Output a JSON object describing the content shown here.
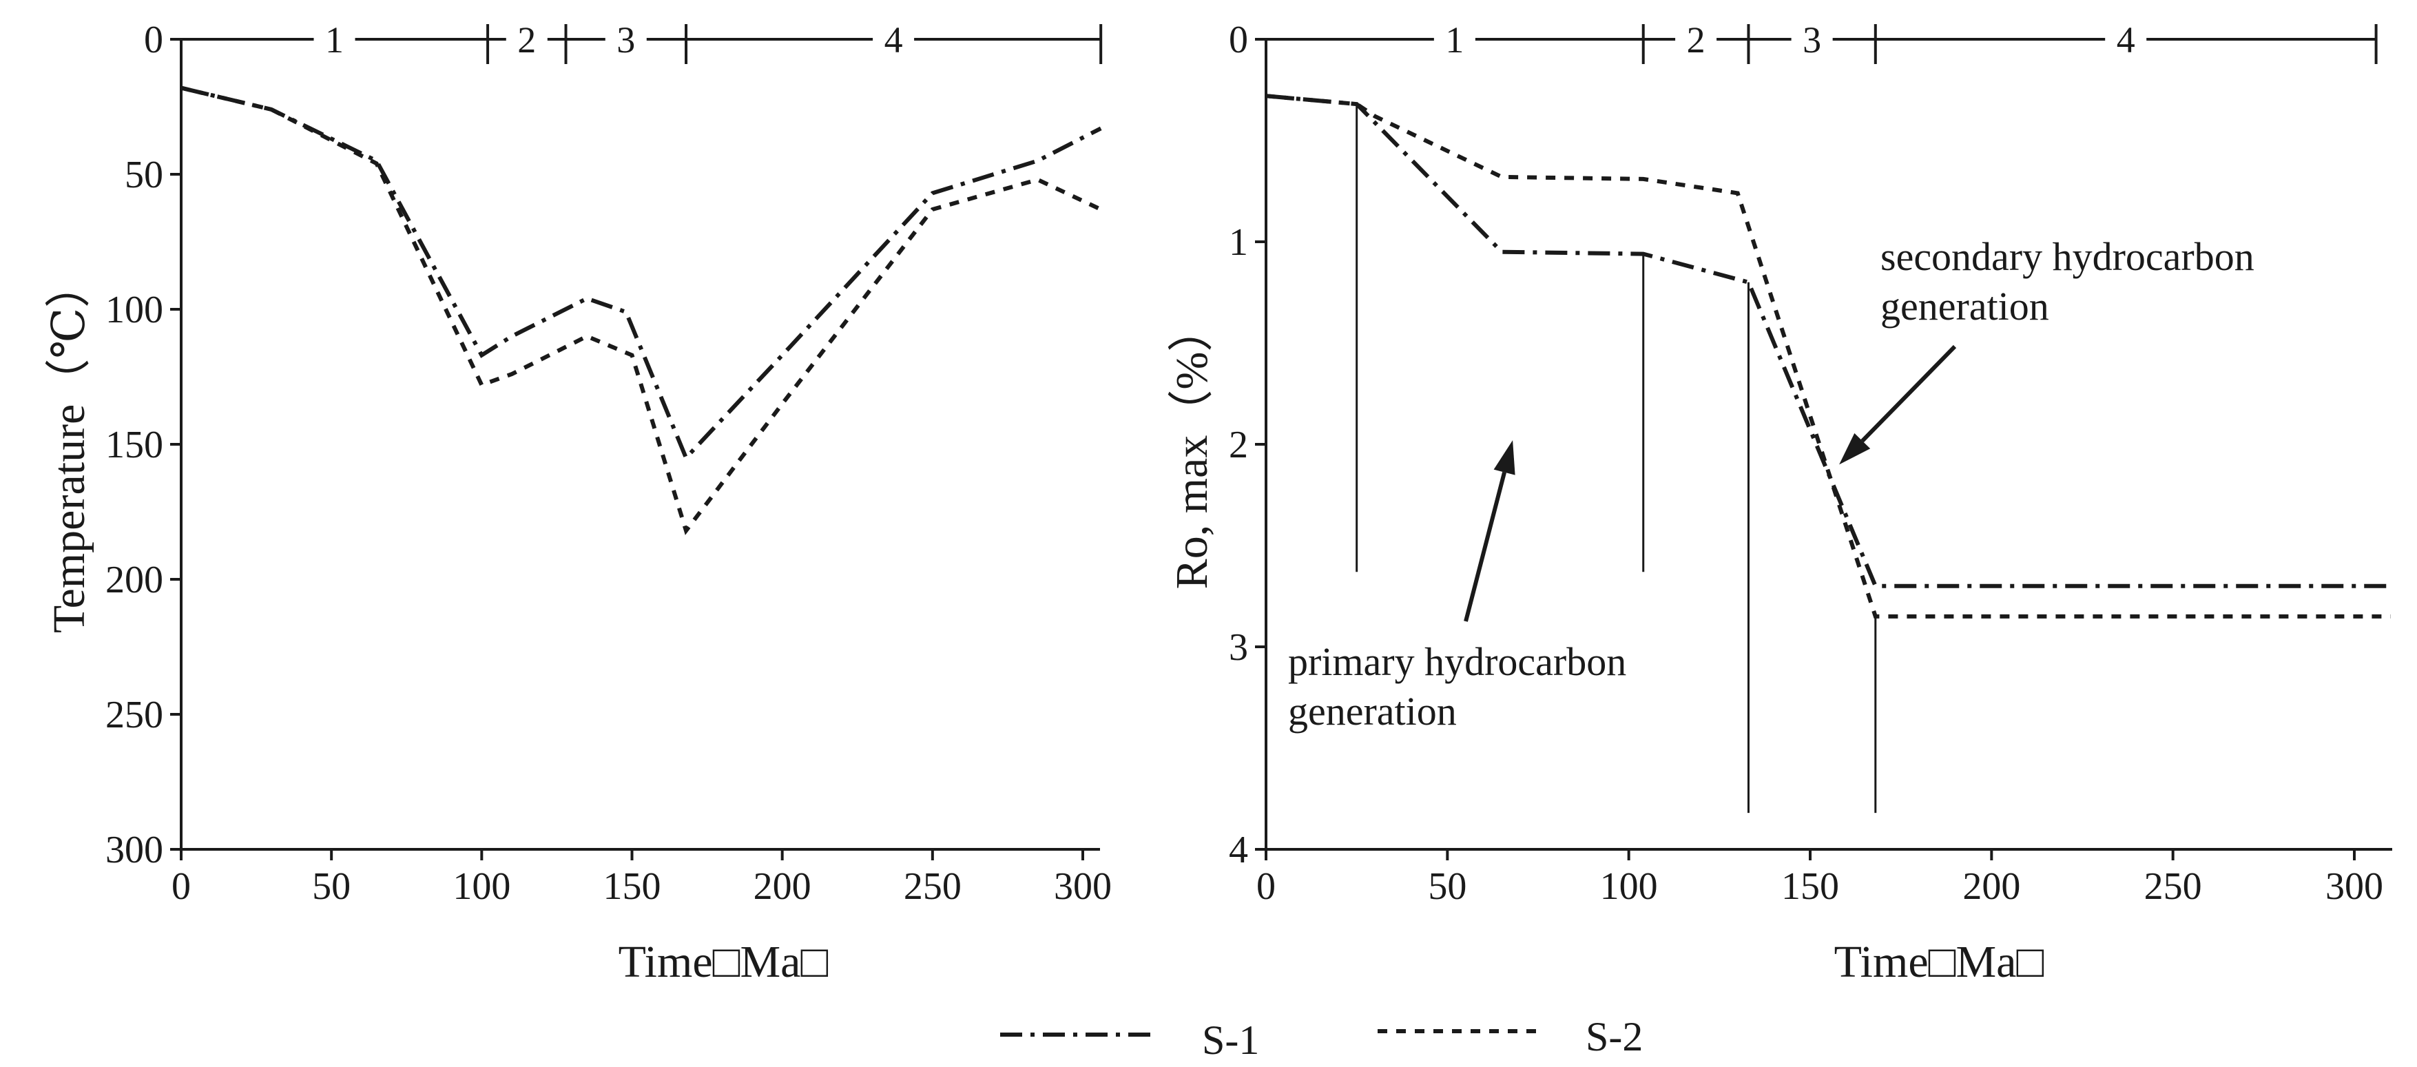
{
  "figure": {
    "line_color": "#1a1a1a",
    "background": "#ffffff"
  },
  "chart_data": [
    {
      "type": "line",
      "title": "",
      "xlabel": "Time□Ma□",
      "ylabel": "Temperature（℃）",
      "xlim": [
        0,
        300
      ],
      "ylim": [
        0,
        300
      ],
      "y_inverted": true,
      "x_ticks": [
        0,
        50,
        100,
        150,
        200,
        250,
        300
      ],
      "y_ticks": [
        0,
        50,
        100,
        150,
        200,
        250,
        300
      ],
      "stages": {
        "labels": [
          "1",
          "2",
          "3",
          "4"
        ],
        "boundaries": [
          0,
          102,
          128,
          168,
          306
        ]
      },
      "series": [
        {
          "name": "S-1",
          "style": "dash-dot",
          "points": [
            [
              0,
              18
            ],
            [
              30,
              26
            ],
            [
              65,
              45
            ],
            [
              100,
              117
            ],
            [
              110,
              110
            ],
            [
              135,
              96
            ],
            [
              148,
              101
            ],
            [
              168,
              155
            ],
            [
              200,
              117
            ],
            [
              250,
              57
            ],
            [
              285,
              45
            ],
            [
              306,
              33
            ]
          ]
        },
        {
          "name": "S-2",
          "style": "dotted",
          "points": [
            [
              0,
              18
            ],
            [
              30,
              26
            ],
            [
              65,
              46
            ],
            [
              100,
              128
            ],
            [
              110,
              124
            ],
            [
              135,
              110
            ],
            [
              150,
              117
            ],
            [
              168,
              182
            ],
            [
              200,
              135
            ],
            [
              250,
              63
            ],
            [
              285,
              52
            ],
            [
              306,
              63
            ]
          ]
        }
      ]
    },
    {
      "type": "line",
      "title": "",
      "xlabel": "Time□Ma□",
      "ylabel": "Ro, max（%）",
      "xlim": [
        0,
        300
      ],
      "ylim": [
        0,
        4
      ],
      "y_inverted": true,
      "x_ticks": [
        0,
        50,
        100,
        150,
        200,
        250,
        300
      ],
      "y_ticks": [
        0,
        1,
        2,
        3,
        4
      ],
      "stages": {
        "labels": [
          "1",
          "2",
          "3",
          "4"
        ],
        "boundaries": [
          0,
          104,
          133,
          168,
          306
        ]
      },
      "series": [
        {
          "name": "S-1",
          "style": "dash-dot",
          "points": [
            [
              0,
              0.28
            ],
            [
              25,
              0.32
            ],
            [
              65,
              1.05
            ],
            [
              104,
              1.06
            ],
            [
              133,
              1.2
            ],
            [
              168,
              2.7
            ],
            [
              310,
              2.7
            ]
          ]
        },
        {
          "name": "S-2",
          "style": "dotted",
          "points": [
            [
              0,
              0.28
            ],
            [
              25,
              0.32
            ],
            [
              30,
              0.38
            ],
            [
              65,
              0.68
            ],
            [
              104,
              0.69
            ],
            [
              130,
              0.76
            ],
            [
              168,
              2.85
            ],
            [
              310,
              2.85
            ]
          ]
        }
      ],
      "vertical_markers": [
        {
          "x": 25,
          "y_from": 0.32,
          "y_to": 2.63
        },
        {
          "x": 104,
          "y_from": 1.06,
          "y_to": 2.63
        },
        {
          "x": 133,
          "y_from": 1.2,
          "y_to": 3.82
        },
        {
          "x": 168,
          "y_from": 2.85,
          "y_to": 3.82
        }
      ],
      "annotations": [
        {
          "lines": [
            "primary hydrocarbon",
            "generation"
          ],
          "arrow_to": [
            68,
            1.98
          ]
        },
        {
          "lines": [
            "secondary hydrocarbon",
            "generation"
          ],
          "arrow_to": [
            158,
            2.1
          ]
        }
      ]
    }
  ],
  "legend": {
    "position": "bottom-center",
    "entries": [
      {
        "label": "S-1",
        "style": "dash-dot"
      },
      {
        "label": "S-2",
        "style": "dotted"
      }
    ]
  }
}
